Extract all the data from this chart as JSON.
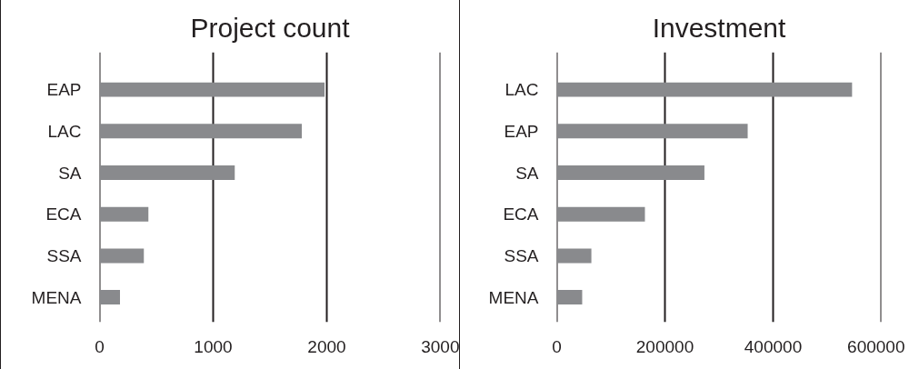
{
  "chart_data": [
    {
      "type": "bar",
      "orientation": "horizontal",
      "title": "Project count",
      "categories": [
        "EAP",
        "LAC",
        "SA",
        "ECA",
        "SSA",
        "MENA"
      ],
      "values": [
        1980,
        1780,
        1190,
        430,
        390,
        180
      ],
      "color": "#898a8d",
      "xlim": [
        0,
        3000
      ],
      "xticks": [
        0,
        1000,
        2000,
        3000
      ],
      "grid": "x"
    },
    {
      "type": "bar",
      "orientation": "horizontal",
      "title": "Investment",
      "categories": [
        "LAC",
        "EAP",
        "SA",
        "ECA",
        "SSA",
        "MENA"
      ],
      "values": [
        546000,
        353000,
        273000,
        163000,
        64000,
        47000
      ],
      "color": "#898a8d",
      "xlim": [
        0,
        600000
      ],
      "xticks": [
        0,
        200000,
        400000,
        600000
      ],
      "grid": "x"
    }
  ]
}
